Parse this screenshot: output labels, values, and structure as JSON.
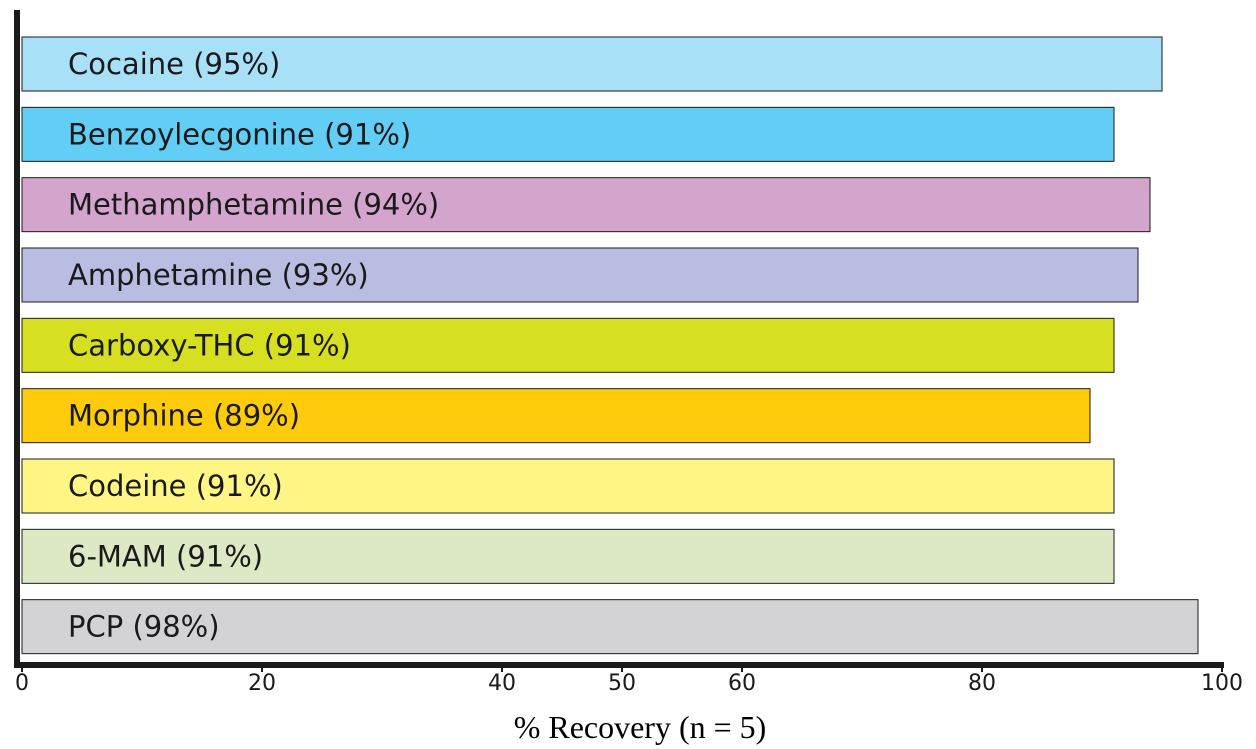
{
  "chart_data": {
    "type": "bar",
    "orientation": "horizontal",
    "title": "",
    "xlabel": "% Recovery (n = 5)",
    "ylabel": "",
    "xlim": [
      0,
      100
    ],
    "grid": false,
    "legend": "none",
    "x_ticks": [
      {
        "value": 0,
        "label": "0"
      },
      {
        "value": 20,
        "label": "20"
      },
      {
        "value": 40,
        "label": "40"
      },
      {
        "value": 50,
        "label": "50"
      },
      {
        "value": 60,
        "label": "60"
      },
      {
        "value": 80,
        "label": "80"
      },
      {
        "value": 100,
        "label": "100"
      }
    ],
    "categories": [
      {
        "label": "Cocaine (95%)",
        "value": 95,
        "color": "#a8e0f8"
      },
      {
        "label": "Benzoylecgonine (91%)",
        "value": 91,
        "color": "#62cdf5"
      },
      {
        "label": "Methamphetamine (94%)",
        "value": 94,
        "color": "#d3a4cc"
      },
      {
        "label": "Amphetamine (93%)",
        "value": 93,
        "color": "#b9bde2"
      },
      {
        "label": "Carboxy-THC (91%)",
        "value": 91,
        "color": "#d7df21"
      },
      {
        "label": "Morphine (89%)",
        "value": 89,
        "color": "#fecc0a"
      },
      {
        "label": "Codeine (91%)",
        "value": 91,
        "color": "#fff685"
      },
      {
        "label": "6-MAM (91%)",
        "value": 91,
        "color": "#dde9c4"
      },
      {
        "label": "PCP (98%)",
        "value": 98,
        "color": "#d3d3d5"
      }
    ]
  }
}
